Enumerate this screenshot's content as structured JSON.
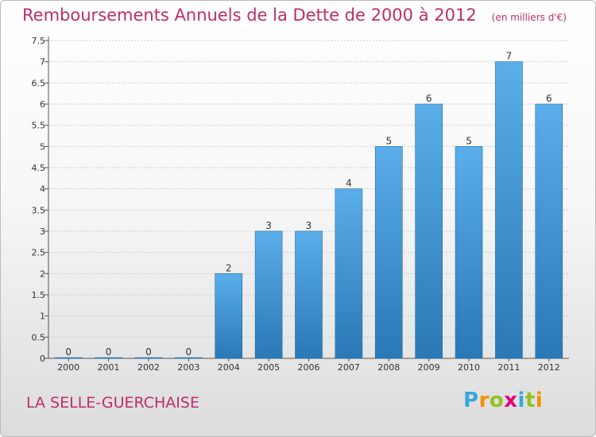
{
  "header": {
    "title": "Remboursements Annuels de la Dette de 2000 à 2012",
    "unit": "(en milliers d'€)"
  },
  "footer": {
    "commune": "LA SELLE-GUERCHAISE",
    "logo_letters": [
      "P",
      "r",
      "o",
      "x",
      "i",
      "t",
      "i"
    ],
    "logo_colors": [
      "#3aa6dc",
      "#f39200",
      "#95c11f",
      "#e3007e",
      "#3aa6dc",
      "#95c11f",
      "#f39200"
    ]
  },
  "colors": {
    "bar_light": "#5aaeea",
    "bar_dark": "#2a78b6",
    "title": "#c02c6a",
    "grid": "#cccccc"
  },
  "chart_data": {
    "type": "bar",
    "title": "Remboursements Annuels de la Dette de 2000 à 2012",
    "subtitle": "(en milliers d'€)",
    "categories": [
      "2000",
      "2001",
      "2002",
      "2003",
      "2004",
      "2005",
      "2006",
      "2007",
      "2008",
      "2009",
      "2010",
      "2011",
      "2012"
    ],
    "values": [
      0,
      0,
      0,
      0,
      2,
      3,
      3,
      4,
      5,
      6,
      5,
      7,
      6
    ],
    "value_labels": [
      "0",
      "0",
      "0",
      "0",
      "2",
      "3",
      "3",
      "4",
      "5",
      "6",
      "5",
      "7",
      "6"
    ],
    "ylim": [
      0,
      7.5
    ],
    "y_ticks": [
      0,
      0.5,
      1,
      1.5,
      2,
      2.5,
      3,
      3.5,
      4,
      4.5,
      5,
      5.5,
      6,
      6.5,
      7,
      7.5
    ],
    "y_tick_labels": [
      "0",
      "0.5",
      "1",
      "1.5",
      "2",
      "2.5",
      "3",
      "3.5",
      "4",
      "4.5",
      "5",
      "5.5",
      "6",
      "6.5",
      "7",
      "7.5"
    ],
    "xlabel": "",
    "ylabel": "",
    "grid": true,
    "legend": "none"
  }
}
